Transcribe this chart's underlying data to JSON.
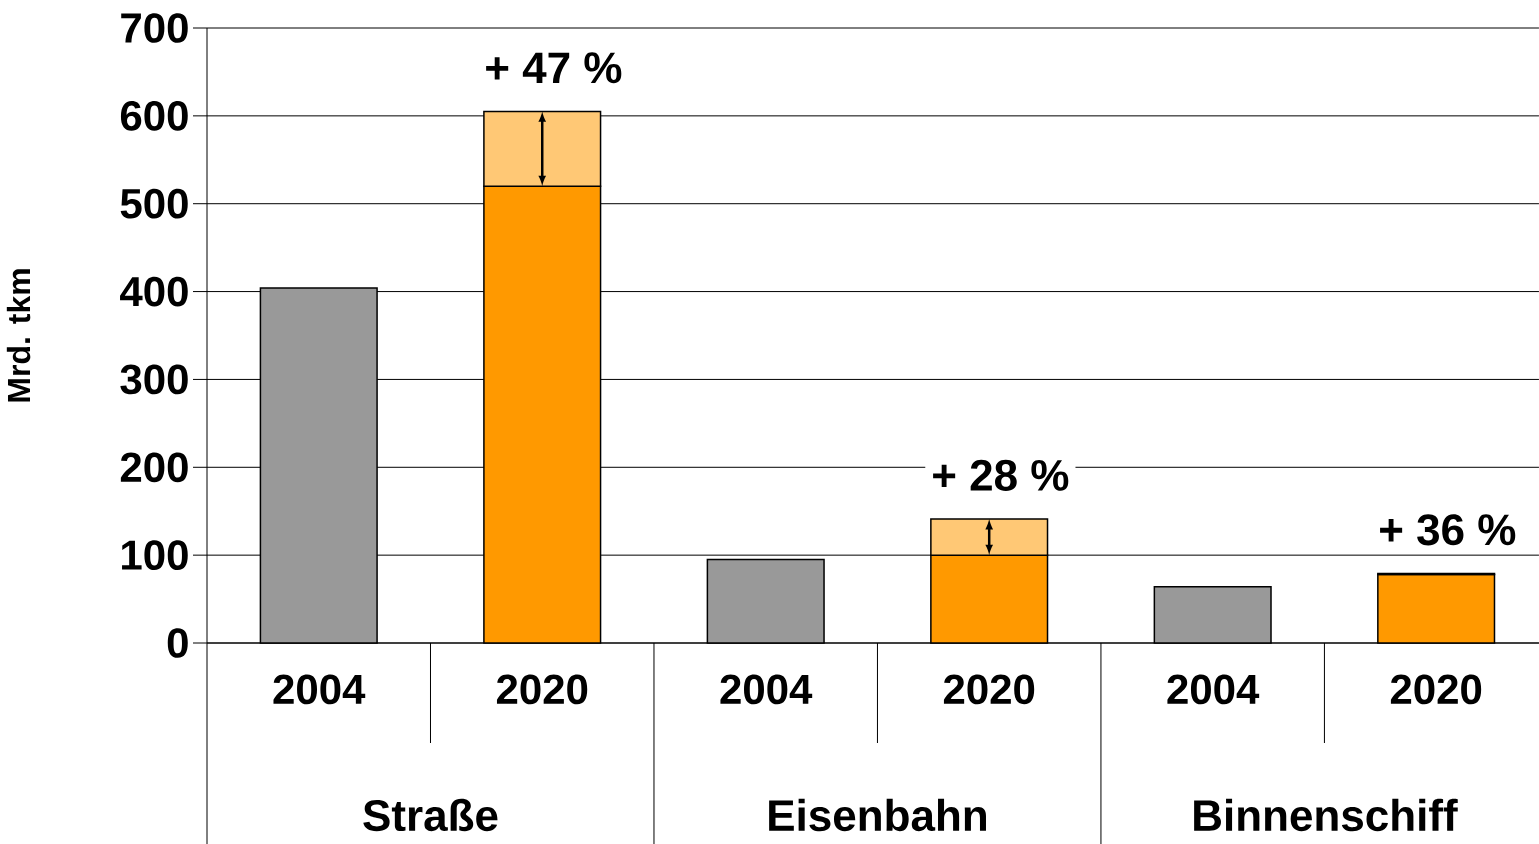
{
  "chart_data": {
    "type": "bar",
    "stacked": true,
    "ylabel": "Mrd. tkm",
    "categories": [
      "2004",
      "2020",
      "2004",
      "2020",
      "2004",
      "2020"
    ],
    "series": [
      {
        "colors": [
          "#999999",
          "#ff9900",
          "#999999",
          "#ff9900",
          "#999999",
          "#ff9900"
        ],
        "values": [
          404,
          520,
          95,
          100,
          64,
          78
        ]
      },
      {
        "color": "#ffc875",
        "values": [
          null,
          85,
          null,
          41,
          null,
          1
        ]
      }
    ],
    "ylim": [
      0,
      700
    ],
    "yticks": [
      0,
      100,
      200,
      300,
      400,
      500,
      600,
      700
    ],
    "grid": "y",
    "annotations": [
      "+ 47 %",
      "+ 28 %",
      "+ 36 %",
      "Straße",
      "Eisenbahn",
      "Binnenschiff"
    ]
  }
}
